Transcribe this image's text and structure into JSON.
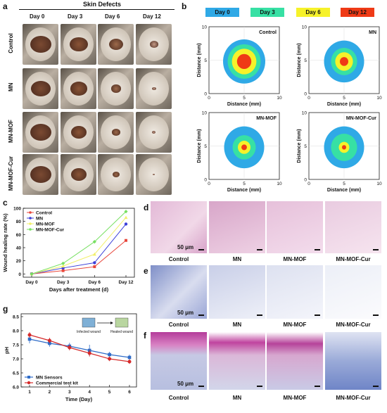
{
  "panels": {
    "a": {
      "label": "a",
      "header": "Skin Defects",
      "columns": [
        "Day 0",
        "Day 3",
        "Day 6",
        "Day 12"
      ],
      "rows": [
        "Control",
        "MN",
        "MN-MOF",
        "MN-MOF-Cur"
      ]
    },
    "b": {
      "label": "b",
      "legend": [
        {
          "label": "Day 0",
          "color": "#2fa9e6"
        },
        {
          "label": "Day 3",
          "color": "#37e0a4"
        },
        {
          "label": "Day 6",
          "color": "#f6f22a"
        },
        {
          "label": "Day 12",
          "color": "#ef3a16"
        }
      ],
      "plots": [
        "Control",
        "MN",
        "MN-MOF",
        "MN-MOF-Cur"
      ],
      "xlabel": "Distance (mm)",
      "ylabel": "Distance (mm)",
      "ticks": [
        "0",
        "5",
        "10"
      ]
    },
    "d": {
      "label": "d",
      "scale": "50 μm",
      "captions": [
        "Control",
        "MN",
        "MN-MOF",
        "MN-MOF-Cur"
      ]
    },
    "e": {
      "label": "e",
      "scale": "50 μm",
      "captions": [
        "Control",
        "MN",
        "MN-MOF",
        "MN-MOF-Cur"
      ]
    },
    "f": {
      "label": "f",
      "scale": "50 μm",
      "captions": [
        "Control",
        "MN",
        "MN-MOF",
        "MN-MOF-Cur"
      ]
    },
    "g": {
      "label": "g",
      "inset_left": "Infected wound",
      "inset_right": "Healed wound"
    }
  },
  "chart_data": [
    {
      "type": "line",
      "panel": "c",
      "label": "c",
      "categories": [
        "Day 0",
        "Day 3",
        "Day 6",
        "Day 12"
      ],
      "xlabel": "Days after treatment (d)",
      "ylabel": "Wound healing rate (%)",
      "ylim": [
        -5,
        100
      ],
      "yticks": [
        "0",
        "20",
        "40",
        "60",
        "80",
        "100"
      ],
      "legend_position": "top-left",
      "series": [
        {
          "name": "Control",
          "color": "#e8473c",
          "marker": "square",
          "values": [
            0,
            5,
            11,
            51
          ]
        },
        {
          "name": "MN",
          "color": "#3b3fd8",
          "marker": "circle",
          "values": [
            0,
            9,
            17,
            76
          ]
        },
        {
          "name": "MN-MOF",
          "color": "#f2f06a",
          "marker": "triangle",
          "values": [
            0,
            12,
            30,
            86
          ]
        },
        {
          "name": "MN-MOF-Cur",
          "color": "#78e062",
          "marker": "diamond",
          "values": [
            0,
            16,
            49,
            95
          ]
        }
      ]
    },
    {
      "type": "line",
      "panel": "g",
      "label": "g",
      "x": [
        1,
        2,
        3,
        4,
        5,
        6
      ],
      "xticks": [
        "1",
        "2",
        "3",
        "4",
        "5",
        "6"
      ],
      "xlabel": "Time (Day)",
      "ylabel": "pH",
      "ylim": [
        6.0,
        8.6
      ],
      "yticks": [
        "6.0",
        "6.5",
        "7.0",
        "7.5",
        "8.0",
        "8.5"
      ],
      "legend_position": "bottom-left",
      "series": [
        {
          "name": "MN Sensors",
          "color": "#2d6bc8",
          "marker": "square",
          "values": [
            7.7,
            7.55,
            7.45,
            7.3,
            7.15,
            7.05
          ],
          "errors": [
            0.15,
            0.12,
            0.12,
            0.2,
            0.1,
            0.1
          ]
        },
        {
          "name": "Commercial test kit",
          "color": "#d52a2a",
          "marker": "circle",
          "values": [
            7.85,
            7.65,
            7.4,
            7.2,
            7.0,
            6.9
          ],
          "errors": [
            0.1,
            0.1,
            0.1,
            0.12,
            0.08,
            0.08
          ]
        }
      ]
    }
  ]
}
